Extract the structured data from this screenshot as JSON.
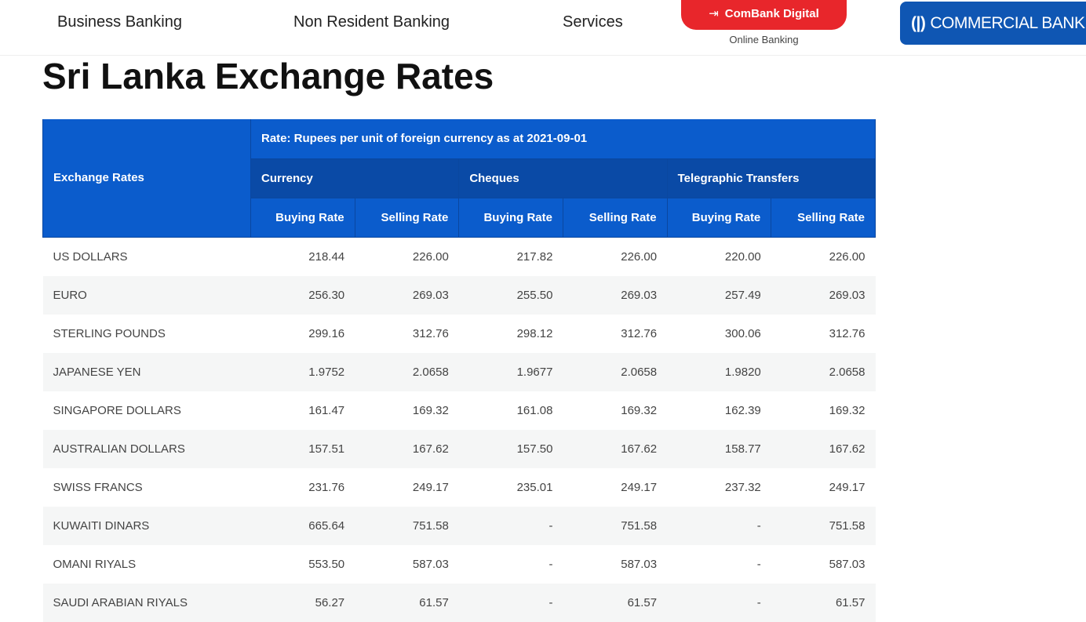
{
  "nav": {
    "items": [
      "Business Banking",
      "Non Resident Banking",
      "Services"
    ],
    "cta": "ComBank Digital",
    "cta_sub": "Online Banking",
    "logo": "COMMERCIAL BANK"
  },
  "title": "Sri Lanka Exchange Rates",
  "table": {
    "corner": "Exchange Rates",
    "rate_note": "Rate: Rupees per unit of foreign currency as at 2021-09-01",
    "groups": [
      "Currency",
      "Cheques",
      "Telegraphic Transfers"
    ],
    "subheaders": [
      "Buying Rate",
      "Selling Rate",
      "Buying Rate",
      "Selling Rate",
      "Buying Rate",
      "Selling Rate"
    ],
    "rows": [
      [
        "US DOLLARS",
        "218.44",
        "226.00",
        "217.82",
        "226.00",
        "220.00",
        "226.00"
      ],
      [
        "EURO",
        "256.30",
        "269.03",
        "255.50",
        "269.03",
        "257.49",
        "269.03"
      ],
      [
        "STERLING POUNDS",
        "299.16",
        "312.76",
        "298.12",
        "312.76",
        "300.06",
        "312.76"
      ],
      [
        "JAPANESE YEN",
        "1.9752",
        "2.0658",
        "1.9677",
        "2.0658",
        "1.9820",
        "2.0658"
      ],
      [
        "SINGAPORE DOLLARS",
        "161.47",
        "169.32",
        "161.08",
        "169.32",
        "162.39",
        "169.32"
      ],
      [
        "AUSTRALIAN DOLLARS",
        "157.51",
        "167.62",
        "157.50",
        "167.62",
        "158.77",
        "167.62"
      ],
      [
        "SWISS FRANCS",
        "231.76",
        "249.17",
        "235.01",
        "249.17",
        "237.32",
        "249.17"
      ],
      [
        "KUWAITI DINARS",
        "665.64",
        "751.58",
        "-",
        "751.58",
        "-",
        "751.58"
      ],
      [
        "OMANI RIYALS",
        "553.50",
        "587.03",
        "-",
        "587.03",
        "-",
        "587.03"
      ],
      [
        "SAUDI ARABIAN RIYALS",
        "56.27",
        "61.57",
        "-",
        "61.57",
        "-",
        "61.57"
      ]
    ]
  }
}
